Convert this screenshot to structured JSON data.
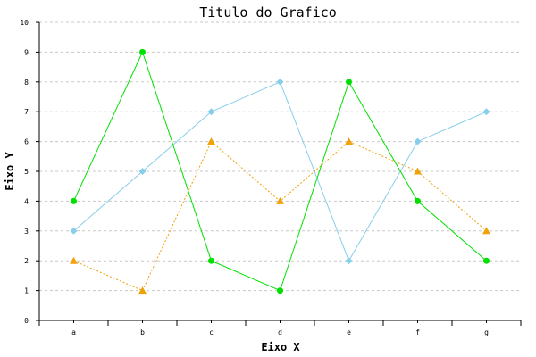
{
  "chart_data": {
    "type": "line",
    "title": "Titulo do Grafico",
    "xlabel": "Eixo X",
    "ylabel": "Eixo Y",
    "categories": [
      "a",
      "b",
      "c",
      "d",
      "e",
      "f",
      "g"
    ],
    "ylim": [
      0,
      10
    ],
    "yticks": [
      0,
      1,
      2,
      3,
      4,
      5,
      6,
      7,
      8,
      9,
      10
    ],
    "grid": "horizontal-dashed",
    "series": [
      {
        "values": [
          3,
          5,
          7,
          8,
          2,
          6,
          7
        ],
        "color": "#87ceeb",
        "marker": "diamond",
        "line": "solid"
      },
      {
        "values": [
          2,
          1,
          6,
          4,
          6,
          5,
          3
        ],
        "color": "#f0a20b",
        "marker": "triangle",
        "line": "dotted"
      },
      {
        "values": [
          4,
          9,
          2,
          1,
          8,
          4,
          2
        ],
        "color": "#00e000",
        "marker": "circle",
        "line": "solid"
      }
    ]
  }
}
